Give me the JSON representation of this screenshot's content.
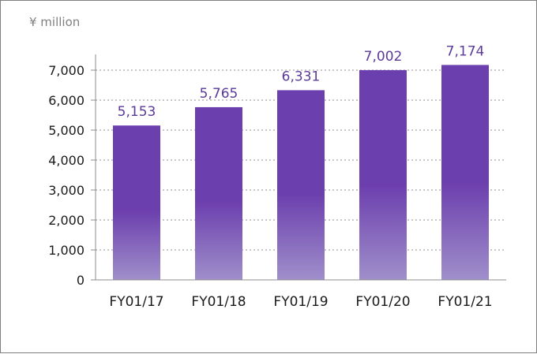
{
  "chart_data": {
    "type": "bar",
    "title": "",
    "unit_label": "¥ million",
    "categories": [
      "FY01/17",
      "FY01/18",
      "FY01/19",
      "FY01/20",
      "FY01/21"
    ],
    "values": [
      5153,
      5765,
      6331,
      7002,
      7174
    ],
    "data_labels": [
      "5,153",
      "5,765",
      "6,331",
      "7,002",
      "7,174"
    ],
    "ylim": [
      0,
      7000
    ],
    "yticks": [
      0,
      1000,
      2000,
      3000,
      4000,
      5000,
      6000,
      7000
    ],
    "ytick_labels": [
      "0",
      "1,000",
      "2,000",
      "3,000",
      "4,000",
      "5,000",
      "6,000",
      "7,000"
    ],
    "grid": true,
    "grid_style": "dotted",
    "legend": "none",
    "colors": {
      "bar_top": "#6c3fae",
      "bar_bottom": "#9f8fca",
      "label": "#5b3a9a",
      "grid": "#a6a6a6",
      "axis": "#8c8c8c"
    }
  }
}
